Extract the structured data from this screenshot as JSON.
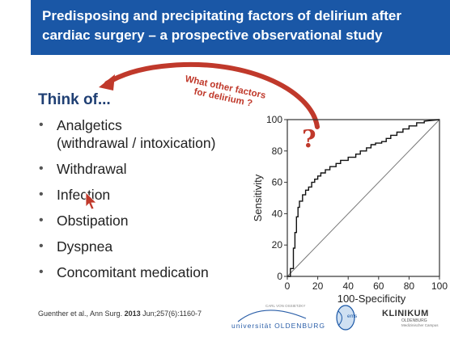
{
  "slide": {
    "title_line1": "Predisposing and precipitating factors of delirium after",
    "title_line2": "cardiac surgery – a prospective observational study",
    "heading": "Think of...",
    "bullets": [
      {
        "line1": "Analgetics",
        "line2": "(withdrawal / intoxication)"
      },
      {
        "line1": "Withdrawal"
      },
      {
        "line1": "Infection"
      },
      {
        "line1": "Obstipation"
      },
      {
        "line1": "Dyspnea"
      },
      {
        "line1": "Concomitant medication"
      }
    ],
    "callout_line1": "What other factors",
    "callout_line2": "for delirium ?",
    "question_mark": "?",
    "citation_authors": "Guenther et al., Ann Surg.",
    "citation_year": "2013",
    "citation_rest": "Jun;257(6):1160-7",
    "accent_color": "#1a57a6",
    "callout_color": "#c0392b"
  },
  "logos": {
    "uni_small": "CARL VON OSSIETZKY",
    "uni_main": "universität OLDENBURG",
    "ems": "ems",
    "klinikum_main": "KLINIKUM",
    "klinikum_sub1": "OLDENBURG",
    "klinikum_sub2": "Medizinischer Campus"
  },
  "chart_data": {
    "type": "line",
    "xlabel": "100-Specificity",
    "ylabel": "Sensitivity",
    "xlim": [
      0,
      100
    ],
    "ylim": [
      0,
      100
    ],
    "xticks": [
      "0",
      "20",
      "40",
      "60",
      "80",
      "100"
    ],
    "yticks": [
      "0",
      "20",
      "40",
      "60",
      "80",
      "100"
    ],
    "series": [
      {
        "x": [
          0,
          2,
          2,
          4,
          4,
          5,
          5,
          6,
          6,
          7,
          7,
          8,
          8,
          10,
          10,
          12,
          12,
          14,
          14,
          16,
          16,
          18,
          18,
          20,
          20,
          22,
          22,
          25,
          25,
          28,
          28,
          32,
          32,
          35,
          35,
          40,
          40,
          45,
          45,
          48,
          48,
          52,
          52,
          55,
          55,
          58,
          58,
          62,
          62,
          65,
          65,
          68,
          68,
          72,
          72,
          76,
          76,
          80,
          80,
          85,
          85,
          90,
          90,
          100
        ],
        "y": [
          0,
          0,
          5,
          5,
          18,
          18,
          28,
          28,
          38,
          38,
          44,
          44,
          48,
          48,
          52,
          52,
          55,
          55,
          57,
          57,
          60,
          60,
          62,
          62,
          64,
          64,
          66,
          66,
          68,
          68,
          70,
          70,
          72,
          72,
          74,
          74,
          76,
          76,
          78,
          78,
          80,
          80,
          82,
          82,
          84,
          84,
          85,
          85,
          86,
          86,
          88,
          88,
          90,
          90,
          92,
          92,
          94,
          94,
          96,
          96,
          98,
          98,
          99,
          100
        ]
      },
      {
        "x": [
          0,
          100
        ],
        "y": [
          0,
          100
        ]
      }
    ]
  }
}
